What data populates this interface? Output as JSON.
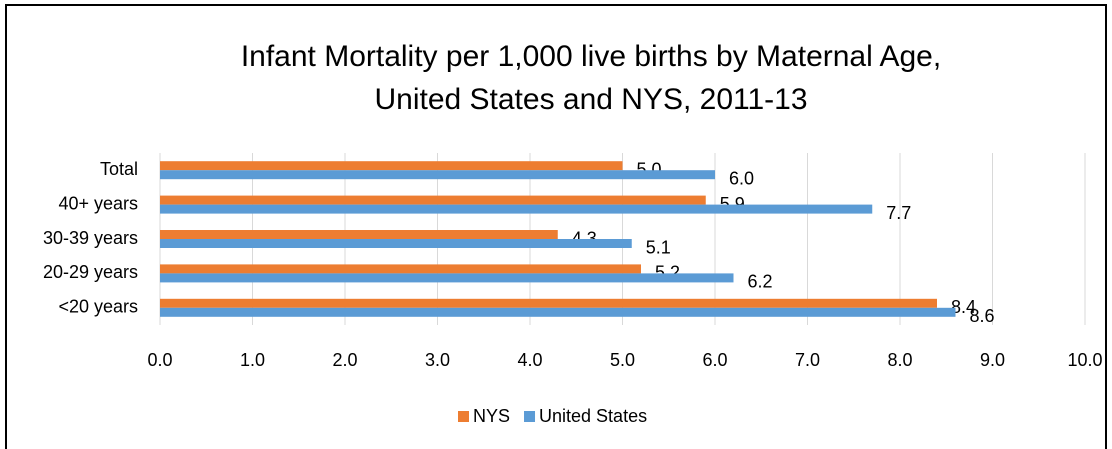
{
  "chart_data": {
    "type": "bar",
    "orientation": "horizontal",
    "title": "Infant Mortality per 1,000 live births by Maternal Age,",
    "subtitle": "United States and NYS, 2011-13",
    "categories": [
      "Total",
      "40+ years",
      "30-39 years",
      "20-29 years",
      "<20 years"
    ],
    "series": [
      {
        "name": "NYS",
        "color": "#ed7d31",
        "values": [
          5.0,
          5.9,
          4.3,
          5.2,
          8.4
        ],
        "value_labels": [
          "5.0",
          "5.9",
          "4.3",
          "5.2",
          "8.4"
        ]
      },
      {
        "name": "United States",
        "color": "#5b9bd5",
        "values": [
          6.0,
          7.7,
          5.1,
          6.2,
          8.6
        ],
        "value_labels": [
          "6.0",
          "7.7",
          "5.1",
          "6.2",
          "8.6"
        ]
      }
    ],
    "xlim": [
      0,
      10
    ],
    "xticks": [
      {
        "value": 0,
        "label": "0.0"
      },
      {
        "value": 1,
        "label": "1.0"
      },
      {
        "value": 2,
        "label": "2.0"
      },
      {
        "value": 3,
        "label": "3.0"
      },
      {
        "value": 4,
        "label": "4.0"
      },
      {
        "value": 5,
        "label": "5.0"
      },
      {
        "value": 6,
        "label": "6.0"
      },
      {
        "value": 7,
        "label": "7.0"
      },
      {
        "value": 8,
        "label": "8.0"
      },
      {
        "value": 9,
        "label": "9.0"
      },
      {
        "value": 10,
        "label": "10.0"
      }
    ],
    "grid": true,
    "legend": "bottom"
  }
}
